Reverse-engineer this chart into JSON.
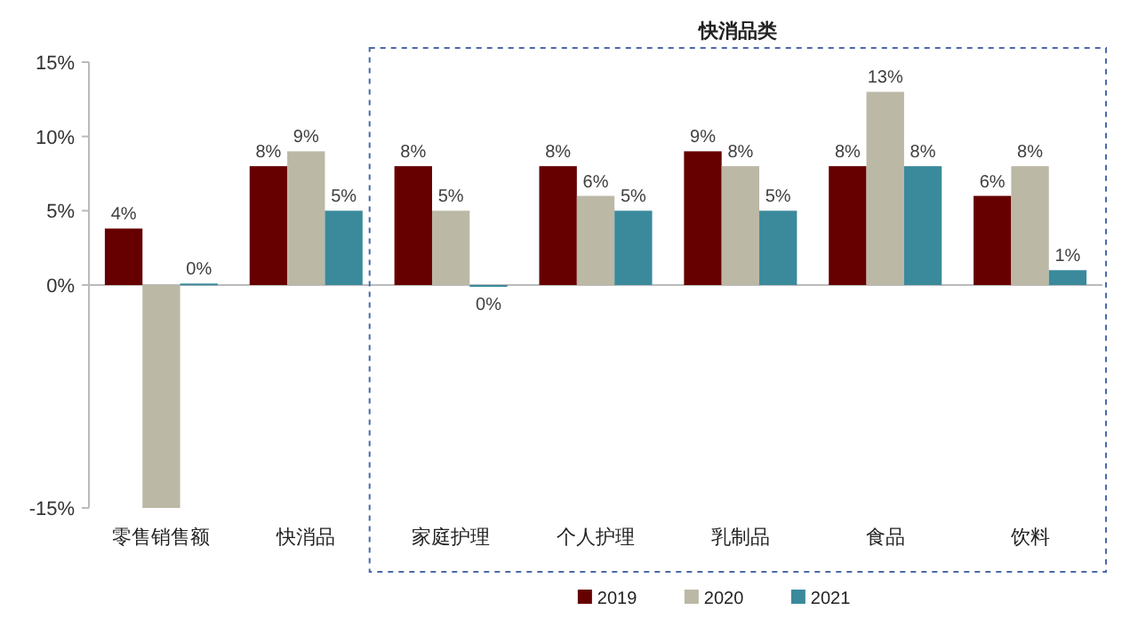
{
  "chart_data": {
    "type": "bar",
    "categories": [
      "零售销售额",
      "快消品",
      "家庭护理",
      "个人护理",
      "乳制品",
      "食品",
      "饮料"
    ],
    "series": [
      {
        "name": "2019",
        "color": "#660000",
        "values": [
          3.8,
          8,
          8,
          8,
          9,
          8,
          6
        ],
        "value_labels": [
          "4%",
          "8%",
          "8%",
          "8%",
          "9%",
          "8%",
          "6%"
        ]
      },
      {
        "name": "2020",
        "color": "#bcb8a6",
        "values": [
          -15,
          9,
          5,
          6,
          8,
          13,
          8
        ],
        "value_labels": [
          null,
          "9%",
          "5%",
          "6%",
          "8%",
          "13%",
          "8%"
        ]
      },
      {
        "name": "2021",
        "color": "#3a8a9c",
        "values": [
          0.1,
          5,
          -0.1,
          5,
          5,
          8,
          1
        ],
        "value_labels": [
          "0%",
          "5%",
          "0%",
          "5%",
          "5%",
          "8%",
          "1%"
        ]
      }
    ],
    "ylim": [
      -15,
      15
    ],
    "yticks": [
      {
        "value": -15,
        "label": "-15%"
      },
      {
        "value": 0,
        "label": "0%"
      },
      {
        "value": 5,
        "label": "5%"
      },
      {
        "value": 10,
        "label": "10%"
      },
      {
        "value": 15,
        "label": "15%"
      }
    ],
    "annotations": [
      "快消品类"
    ],
    "legend": "bottom"
  }
}
